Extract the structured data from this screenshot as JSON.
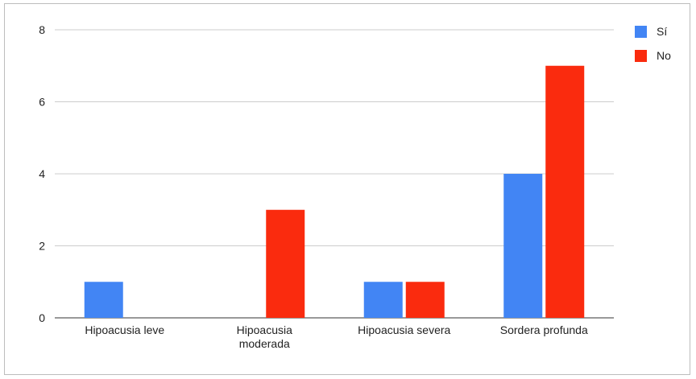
{
  "chart_data": {
    "type": "bar",
    "categories": [
      [
        "Hipoacusia leve"
      ],
      [
        "Hipoacusia",
        "moderada"
      ],
      [
        "Hipoacusia severa"
      ],
      [
        "Sordera profunda"
      ]
    ],
    "series": [
      {
        "name": "Sí",
        "color": "#4285f4",
        "values": [
          1,
          0,
          1,
          4
        ]
      },
      {
        "name": "No",
        "color": "#fa2b0e",
        "values": [
          0,
          3,
          1,
          7
        ]
      }
    ],
    "ylim": [
      0,
      8
    ],
    "yticks": [
      0,
      2,
      4,
      6,
      8
    ],
    "grid": true,
    "legend": "top-right",
    "title": "",
    "xlabel": "",
    "ylabel": ""
  }
}
